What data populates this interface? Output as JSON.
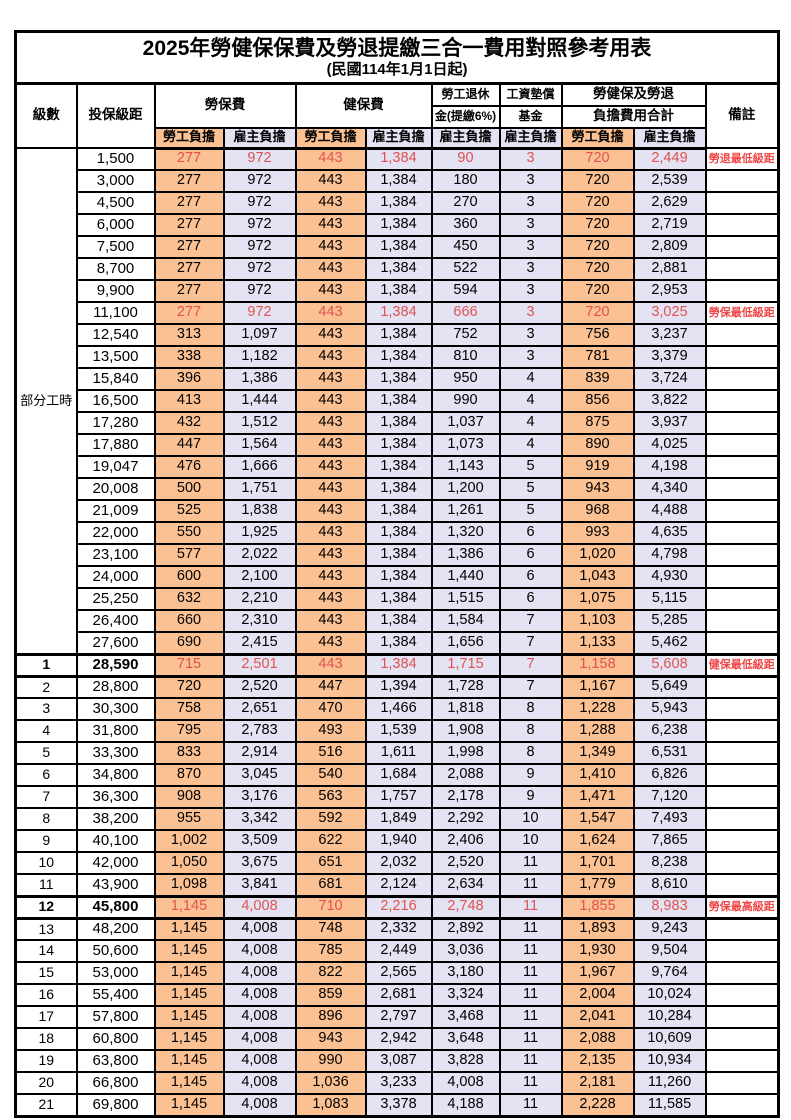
{
  "title": "2025年勞健保保費及勞退提繳三合一費用對照參考用表",
  "subtitle": "(民國114年1月1日起)",
  "header": {
    "level": "級數",
    "bracket": "投保級距",
    "labor_ins": "勞保費",
    "health_ins": "健保費",
    "pension_line1": "勞工退休",
    "pension_line2": "金(提繳6%)",
    "wage_fund_line1": "工資墊償",
    "wage_fund_line2": "基金",
    "total_line1": "勞健保及勞退",
    "total_line2": "負擔費用合計",
    "remark": "備註",
    "employee": "勞工負擔",
    "employer": "雇主負擔"
  },
  "group_label": "部分工時",
  "group_rowspan": 23,
  "colors": {
    "employee_cell": "#fbc192",
    "employer_cell": "#e4e3f3",
    "highlight_value_red": "#e05252",
    "remark_red": "#f04848",
    "border": "#000000"
  },
  "rows": [
    {
      "level": "",
      "bracket": "1,500",
      "values": [
        "277",
        "972",
        "443",
        "1,384",
        "90",
        "3",
        "720",
        "2,449"
      ],
      "remark": "勞退最低級距",
      "red": true
    },
    {
      "level": "",
      "bracket": "3,000",
      "values": [
        "277",
        "972",
        "443",
        "1,384",
        "180",
        "3",
        "720",
        "2,539"
      ],
      "remark": ""
    },
    {
      "level": "",
      "bracket": "4,500",
      "values": [
        "277",
        "972",
        "443",
        "1,384",
        "270",
        "3",
        "720",
        "2,629"
      ],
      "remark": ""
    },
    {
      "level": "",
      "bracket": "6,000",
      "values": [
        "277",
        "972",
        "443",
        "1,384",
        "360",
        "3",
        "720",
        "2,719"
      ],
      "remark": ""
    },
    {
      "level": "",
      "bracket": "7,500",
      "values": [
        "277",
        "972",
        "443",
        "1,384",
        "450",
        "3",
        "720",
        "2,809"
      ],
      "remark": ""
    },
    {
      "level": "",
      "bracket": "8,700",
      "values": [
        "277",
        "972",
        "443",
        "1,384",
        "522",
        "3",
        "720",
        "2,881"
      ],
      "remark": ""
    },
    {
      "level": "",
      "bracket": "9,900",
      "values": [
        "277",
        "972",
        "443",
        "1,384",
        "594",
        "3",
        "720",
        "2,953"
      ],
      "remark": ""
    },
    {
      "level": "",
      "bracket": "11,100",
      "values": [
        "277",
        "972",
        "443",
        "1,384",
        "666",
        "3",
        "720",
        "3,025"
      ],
      "remark": "勞保最低級距",
      "red": true
    },
    {
      "level": "",
      "bracket": "12,540",
      "values": [
        "313",
        "1,097",
        "443",
        "1,384",
        "752",
        "3",
        "756",
        "3,237"
      ],
      "remark": ""
    },
    {
      "level": "",
      "bracket": "13,500",
      "values": [
        "338",
        "1,182",
        "443",
        "1,384",
        "810",
        "3",
        "781",
        "3,379"
      ],
      "remark": ""
    },
    {
      "level": "",
      "bracket": "15,840",
      "values": [
        "396",
        "1,386",
        "443",
        "1,384",
        "950",
        "4",
        "839",
        "3,724"
      ],
      "remark": ""
    },
    {
      "level": "",
      "bracket": "16,500",
      "values": [
        "413",
        "1,444",
        "443",
        "1,384",
        "990",
        "4",
        "856",
        "3,822"
      ],
      "remark": ""
    },
    {
      "level": "",
      "bracket": "17,280",
      "values": [
        "432",
        "1,512",
        "443",
        "1,384",
        "1,037",
        "4",
        "875",
        "3,937"
      ],
      "remark": ""
    },
    {
      "level": "",
      "bracket": "17,880",
      "values": [
        "447",
        "1,564",
        "443",
        "1,384",
        "1,073",
        "4",
        "890",
        "4,025"
      ],
      "remark": ""
    },
    {
      "level": "",
      "bracket": "19,047",
      "values": [
        "476",
        "1,666",
        "443",
        "1,384",
        "1,143",
        "5",
        "919",
        "4,198"
      ],
      "remark": ""
    },
    {
      "level": "",
      "bracket": "20,008",
      "values": [
        "500",
        "1,751",
        "443",
        "1,384",
        "1,200",
        "5",
        "943",
        "4,340"
      ],
      "remark": ""
    },
    {
      "level": "",
      "bracket": "21,009",
      "values": [
        "525",
        "1,838",
        "443",
        "1,384",
        "1,261",
        "5",
        "968",
        "4,488"
      ],
      "remark": ""
    },
    {
      "level": "",
      "bracket": "22,000",
      "values": [
        "550",
        "1,925",
        "443",
        "1,384",
        "1,320",
        "6",
        "993",
        "4,635"
      ],
      "remark": ""
    },
    {
      "level": "",
      "bracket": "23,100",
      "values": [
        "577",
        "2,022",
        "443",
        "1,384",
        "1,386",
        "6",
        "1,020",
        "4,798"
      ],
      "remark": ""
    },
    {
      "level": "",
      "bracket": "24,000",
      "values": [
        "600",
        "2,100",
        "443",
        "1,384",
        "1,440",
        "6",
        "1,043",
        "4,930"
      ],
      "remark": ""
    },
    {
      "level": "",
      "bracket": "25,250",
      "values": [
        "632",
        "2,210",
        "443",
        "1,384",
        "1,515",
        "6",
        "1,075",
        "5,115"
      ],
      "remark": ""
    },
    {
      "level": "",
      "bracket": "26,400",
      "values": [
        "660",
        "2,310",
        "443",
        "1,384",
        "1,584",
        "7",
        "1,103",
        "5,285"
      ],
      "remark": ""
    },
    {
      "level": "",
      "bracket": "27,600",
      "values": [
        "690",
        "2,415",
        "443",
        "1,384",
        "1,656",
        "7",
        "1,133",
        "5,462"
      ],
      "remark": ""
    },
    {
      "level": "1",
      "bracket": "28,590",
      "values": [
        "715",
        "2,501",
        "443",
        "1,384",
        "1,715",
        "7",
        "1,158",
        "5,608"
      ],
      "remark": "健保最低級距",
      "red": true,
      "bold": true,
      "thick": true
    },
    {
      "level": "2",
      "bracket": "28,800",
      "values": [
        "720",
        "2,520",
        "447",
        "1,394",
        "1,728",
        "7",
        "1,167",
        "5,649"
      ],
      "remark": ""
    },
    {
      "level": "3",
      "bracket": "30,300",
      "values": [
        "758",
        "2,651",
        "470",
        "1,466",
        "1,818",
        "8",
        "1,228",
        "5,943"
      ],
      "remark": ""
    },
    {
      "level": "4",
      "bracket": "31,800",
      "values": [
        "795",
        "2,783",
        "493",
        "1,539",
        "1,908",
        "8",
        "1,288",
        "6,238"
      ],
      "remark": ""
    },
    {
      "level": "5",
      "bracket": "33,300",
      "values": [
        "833",
        "2,914",
        "516",
        "1,611",
        "1,998",
        "8",
        "1,349",
        "6,531"
      ],
      "remark": ""
    },
    {
      "level": "6",
      "bracket": "34,800",
      "values": [
        "870",
        "3,045",
        "540",
        "1,684",
        "2,088",
        "9",
        "1,410",
        "6,826"
      ],
      "remark": ""
    },
    {
      "level": "7",
      "bracket": "36,300",
      "values": [
        "908",
        "3,176",
        "563",
        "1,757",
        "2,178",
        "9",
        "1,471",
        "7,120"
      ],
      "remark": ""
    },
    {
      "level": "8",
      "bracket": "38,200",
      "values": [
        "955",
        "3,342",
        "592",
        "1,849",
        "2,292",
        "10",
        "1,547",
        "7,493"
      ],
      "remark": ""
    },
    {
      "level": "9",
      "bracket": "40,100",
      "values": [
        "1,002",
        "3,509",
        "622",
        "1,940",
        "2,406",
        "10",
        "1,624",
        "7,865"
      ],
      "remark": ""
    },
    {
      "level": "10",
      "bracket": "42,000",
      "values": [
        "1,050",
        "3,675",
        "651",
        "2,032",
        "2,520",
        "11",
        "1,701",
        "8,238"
      ],
      "remark": ""
    },
    {
      "level": "11",
      "bracket": "43,900",
      "values": [
        "1,098",
        "3,841",
        "681",
        "2,124",
        "2,634",
        "11",
        "1,779",
        "8,610"
      ],
      "remark": ""
    },
    {
      "level": "12",
      "bracket": "45,800",
      "values": [
        "1,145",
        "4,008",
        "710",
        "2,216",
        "2,748",
        "11",
        "1,855",
        "8,983"
      ],
      "remark": "勞保最高級距",
      "red": true,
      "bold": true,
      "thick": true
    },
    {
      "level": "13",
      "bracket": "48,200",
      "values": [
        "1,145",
        "4,008",
        "748",
        "2,332",
        "2,892",
        "11",
        "1,893",
        "9,243"
      ],
      "remark": ""
    },
    {
      "level": "14",
      "bracket": "50,600",
      "values": [
        "1,145",
        "4,008",
        "785",
        "2,449",
        "3,036",
        "11",
        "1,930",
        "9,504"
      ],
      "remark": ""
    },
    {
      "level": "15",
      "bracket": "53,000",
      "values": [
        "1,145",
        "4,008",
        "822",
        "2,565",
        "3,180",
        "11",
        "1,967",
        "9,764"
      ],
      "remark": ""
    },
    {
      "level": "16",
      "bracket": "55,400",
      "values": [
        "1,145",
        "4,008",
        "859",
        "2,681",
        "3,324",
        "11",
        "2,004",
        "10,024"
      ],
      "remark": ""
    },
    {
      "level": "17",
      "bracket": "57,800",
      "values": [
        "1,145",
        "4,008",
        "896",
        "2,797",
        "3,468",
        "11",
        "2,041",
        "10,284"
      ],
      "remark": ""
    },
    {
      "level": "18",
      "bracket": "60,800",
      "values": [
        "1,145",
        "4,008",
        "943",
        "2,942",
        "3,648",
        "11",
        "2,088",
        "10,609"
      ],
      "remark": ""
    },
    {
      "level": "19",
      "bracket": "63,800",
      "values": [
        "1,145",
        "4,008",
        "990",
        "3,087",
        "3,828",
        "11",
        "2,135",
        "10,934"
      ],
      "remark": ""
    },
    {
      "level": "20",
      "bracket": "66,800",
      "values": [
        "1,145",
        "4,008",
        "1,036",
        "3,233",
        "4,008",
        "11",
        "2,181",
        "11,260"
      ],
      "remark": ""
    },
    {
      "level": "21",
      "bracket": "69,800",
      "values": [
        "1,145",
        "4,008",
        "1,083",
        "3,378",
        "4,188",
        "11",
        "2,228",
        "11,585"
      ],
      "remark": ""
    }
  ]
}
